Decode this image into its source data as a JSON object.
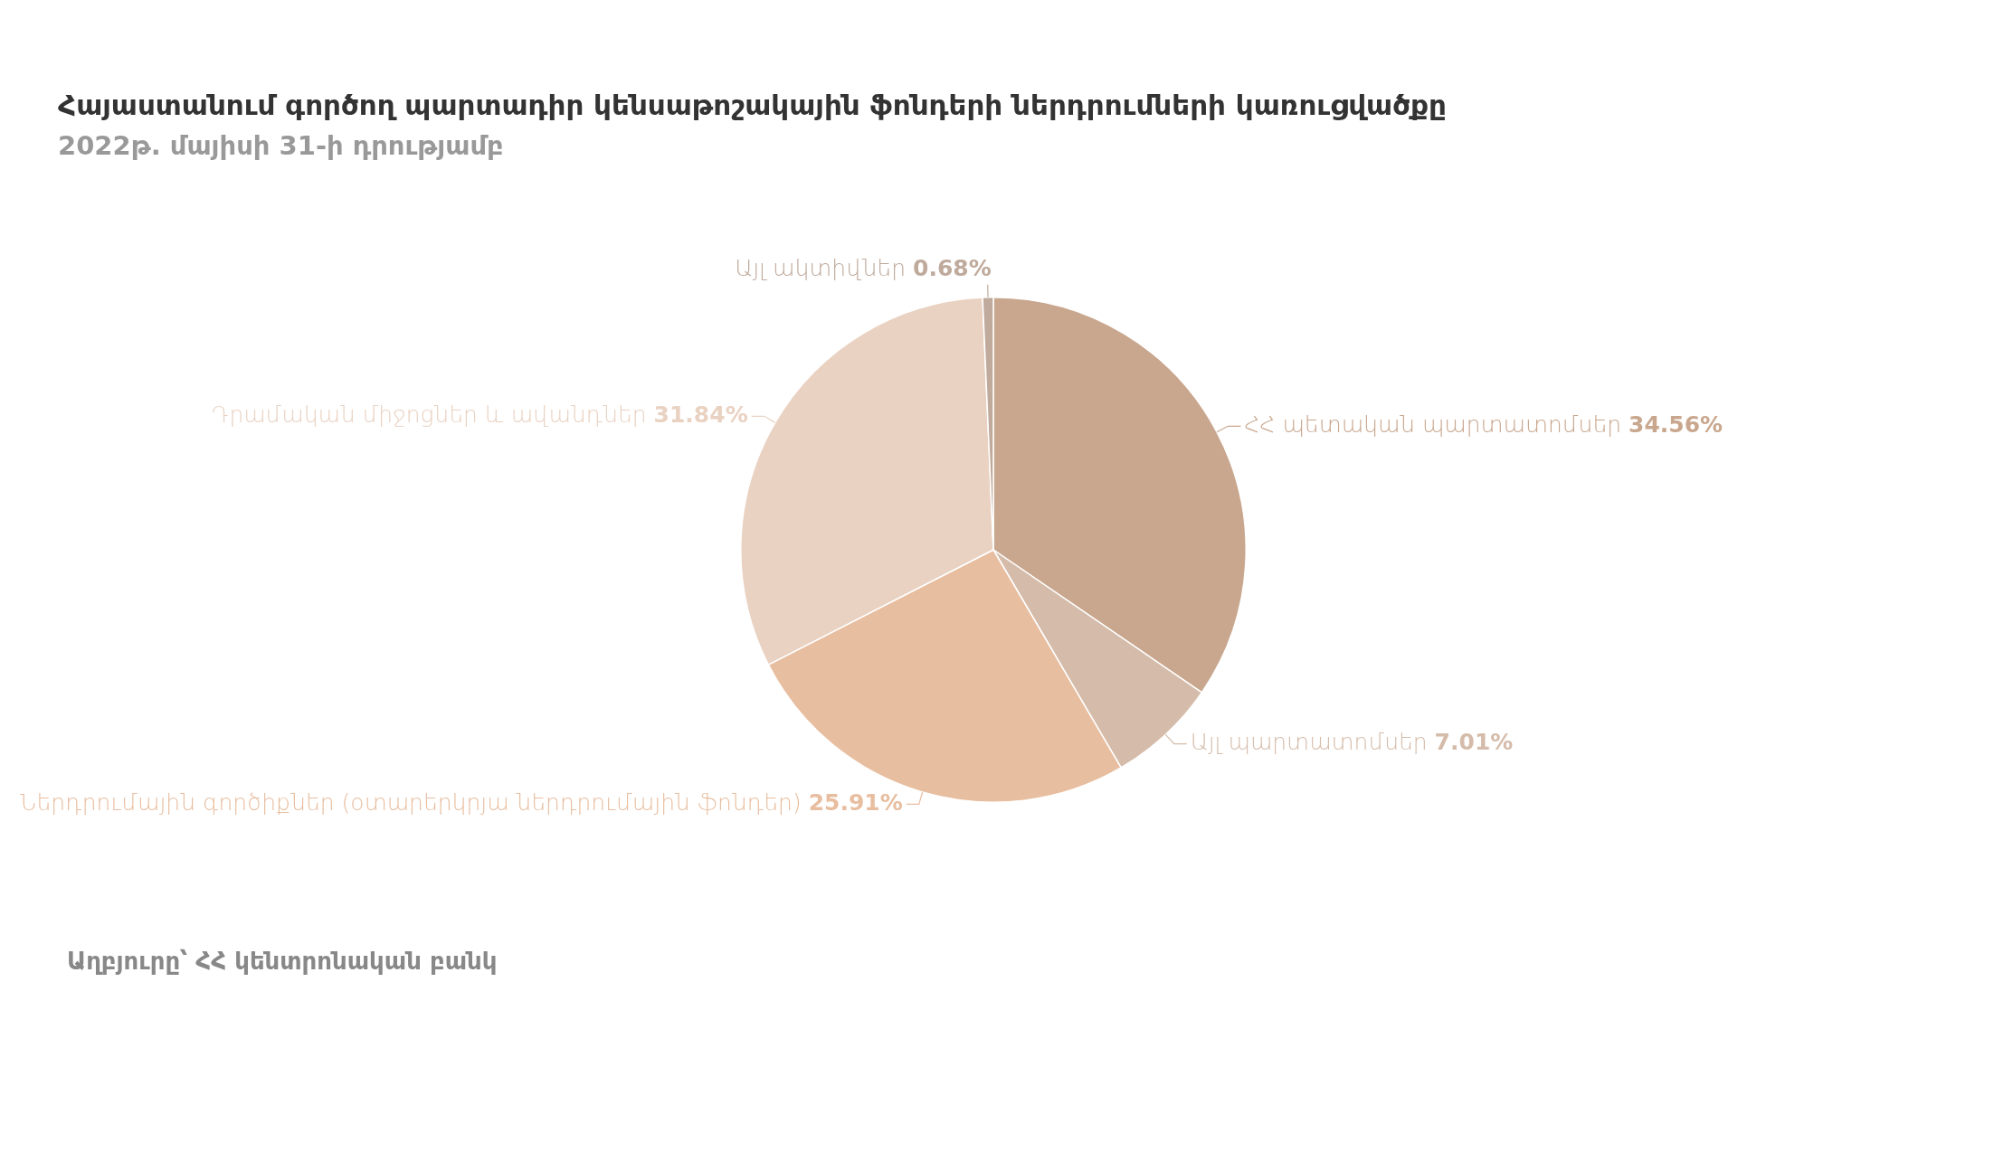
{
  "chart_data": {
    "type": "pie",
    "title": "Հայաստանում գործող պարտադիր կենսաթոշակային ֆոնդերի ներդրումների կառուցվածքը",
    "subtitle": "2022թ. մայիսի 31-ի դրությամբ",
    "categories": [
      "ՀՀ պետական պարտատոմսեր",
      "Այլ պարտատոմսեր",
      "Ներդրումային գործիքներ (օտարերկրյա ներդրումային ֆոնդեր)",
      "Դրամական միջոցներ և ավանդներ",
      "Այլ ակտիվներ"
    ],
    "values": [
      34.56,
      7.01,
      25.91,
      31.84,
      0.68
    ],
    "value_labels": [
      "34.56%",
      "7.01%",
      "25.91%",
      "31.84%",
      "0.68%"
    ],
    "colors": [
      "#c9a78e",
      "#d5bcaa",
      "#e8bea0",
      "#e9d2c2",
      "#bfaa9c"
    ],
    "legend": false,
    "annotations": [
      "Աղբյուրը՝ ՀՀ կենտրոնական բանկ"
    ]
  }
}
